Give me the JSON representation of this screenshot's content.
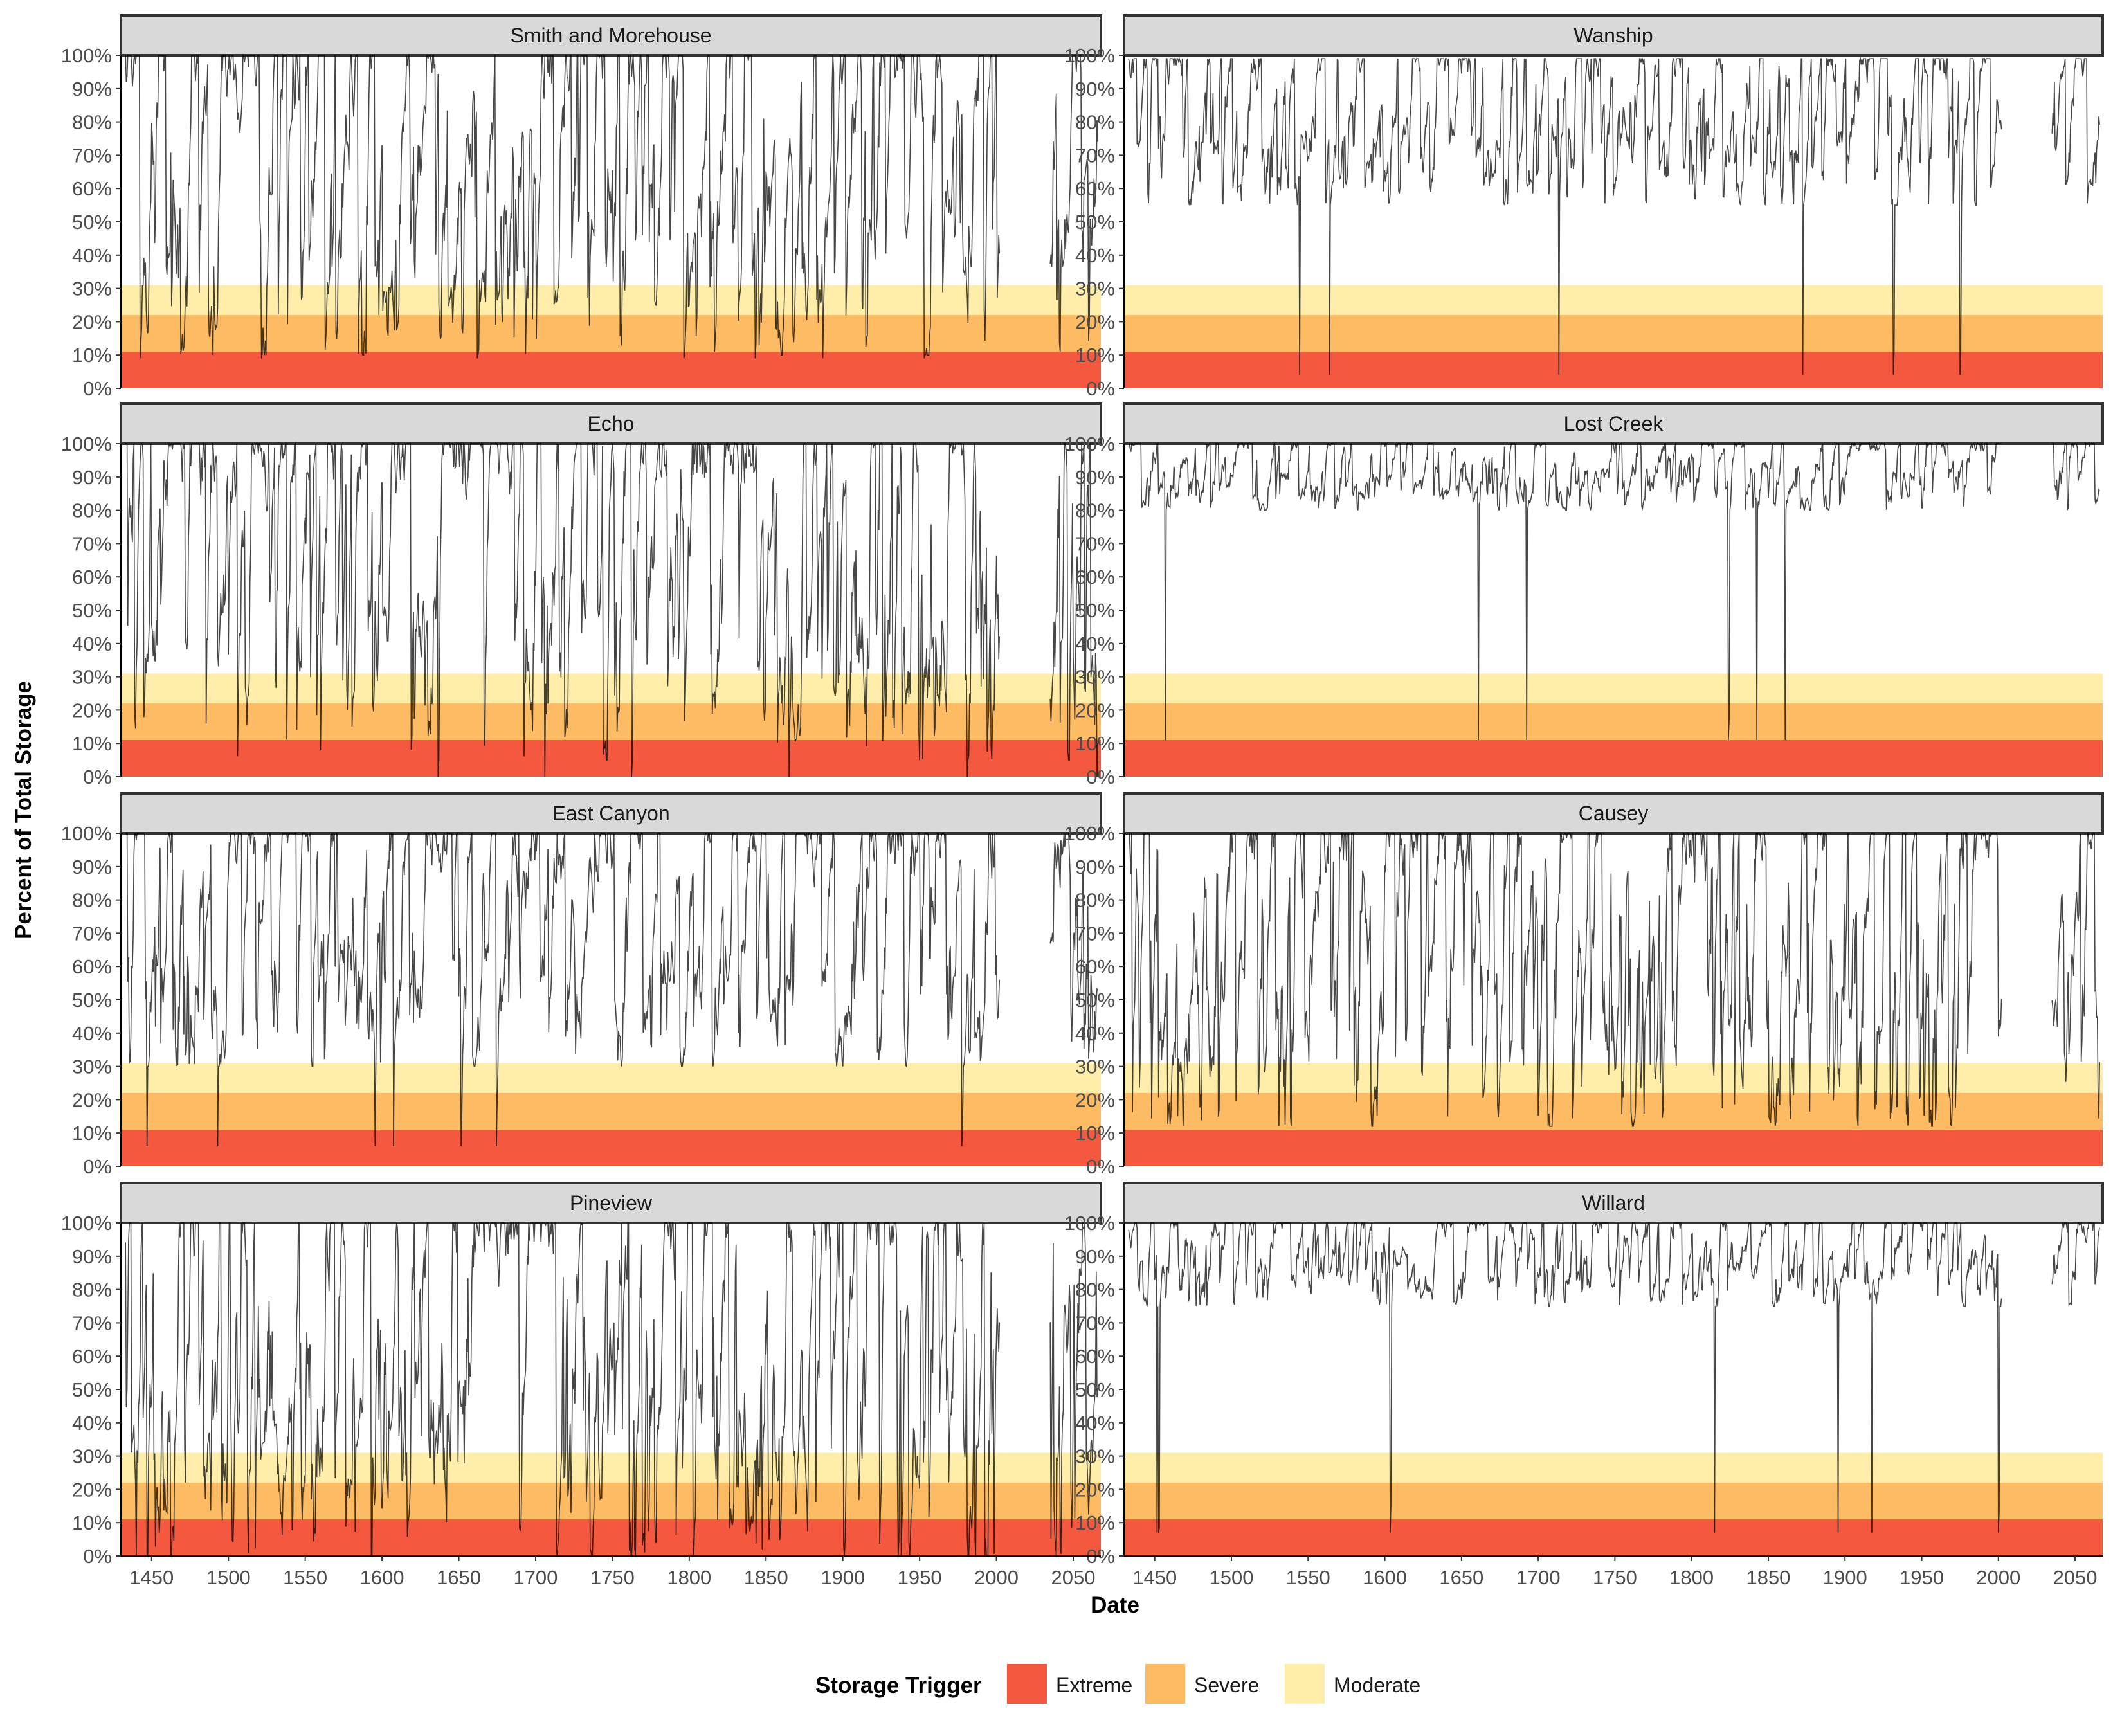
{
  "chart_data": {
    "type": "area",
    "facet_layout": "4 rows x 2 columns",
    "xlabel": "Date",
    "ylabel": "Percent of Total Storage",
    "xlim": [
      1430,
      2068
    ],
    "ylim": [
      0,
      100
    ],
    "x_ticks": [
      1450,
      1500,
      1550,
      1600,
      1650,
      1700,
      1750,
      1800,
      1850,
      1900,
      1950,
      2000,
      2050
    ],
    "y_ticks": [
      0,
      10,
      20,
      30,
      40,
      50,
      60,
      70,
      80,
      90,
      100
    ],
    "y_tick_labels": [
      "0%",
      "10%",
      "20%",
      "30%",
      "40%",
      "50%",
      "60%",
      "70%",
      "80%",
      "90%",
      "100%"
    ],
    "grid": false,
    "legend": {
      "title": "Storage Trigger",
      "placement": "bottom",
      "entries": [
        {
          "name": "Extreme",
          "color": "#f4593f"
        },
        {
          "name": "Severe",
          "color": "#fdbb63"
        },
        {
          "name": "Moderate",
          "color": "#feeeaa"
        }
      ]
    },
    "gap_in_series": [
      2002,
      2035
    ],
    "panels": [
      {
        "name": "Smith and Morehouse",
        "triggers": {
          "extreme": 11,
          "severe": 22,
          "moderate": 31
        },
        "typical_range": [
          10,
          100
        ],
        "min_value": 9
      },
      {
        "name": "Wanship",
        "triggers": {
          "extreme": 11,
          "severe": 22,
          "moderate": 31
        },
        "typical_range": [
          55,
          99
        ],
        "min_value": 4
      },
      {
        "name": "Echo",
        "triggers": {
          "extreme": 11,
          "severe": 22,
          "moderate": 31
        },
        "typical_range": [
          5,
          100
        ],
        "min_value": 0
      },
      {
        "name": "Lost Creek",
        "triggers": {
          "extreme": 11,
          "severe": 22,
          "moderate": 31
        },
        "typical_range": [
          80,
          100
        ],
        "min_value": 11
      },
      {
        "name": "East Canyon",
        "triggers": {
          "extreme": 11,
          "severe": 22,
          "moderate": 31
        },
        "typical_range": [
          30,
          100
        ],
        "min_value": 6
      },
      {
        "name": "Causey",
        "triggers": {
          "extreme": 11,
          "severe": 22,
          "moderate": 31
        },
        "typical_range": [
          12,
          100
        ],
        "min_value": 12
      },
      {
        "name": "Pineview",
        "triggers": {
          "extreme": 11,
          "severe": 22,
          "moderate": 31
        },
        "typical_range": [
          0,
          100
        ],
        "min_value": 0
      },
      {
        "name": "Willard",
        "triggers": {
          "extreme": 11,
          "severe": 22,
          "moderate": 31
        },
        "typical_range": [
          75,
          100
        ],
        "min_value": 7
      }
    ]
  }
}
